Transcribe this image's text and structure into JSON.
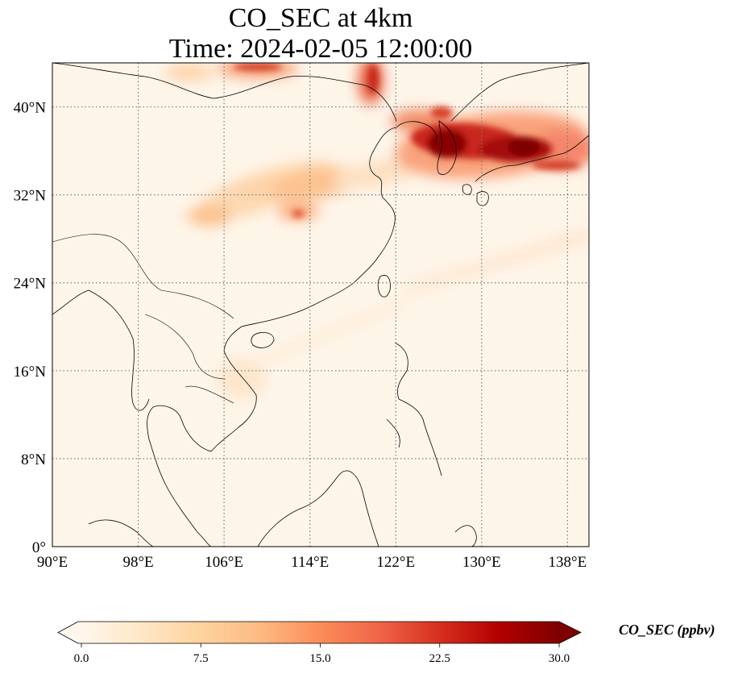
{
  "figure": {
    "title_line1": "CO_SEC at 4km",
    "title_line2": "Time: 2024-02-05 12:00:00"
  },
  "map": {
    "extent": {
      "lon": [
        90,
        140
      ],
      "lat": [
        0,
        44
      ]
    },
    "x_ticks": [
      {
        "value": 90,
        "label": "90°E"
      },
      {
        "value": 98,
        "label": "98°E"
      },
      {
        "value": 106,
        "label": "106°E"
      },
      {
        "value": 114,
        "label": "114°E"
      },
      {
        "value": 122,
        "label": "122°E"
      },
      {
        "value": 130,
        "label": "130°E"
      },
      {
        "value": 138,
        "label": "138°E"
      }
    ],
    "y_ticks": [
      {
        "value": 0,
        "label": "0°"
      },
      {
        "value": 8,
        "label": "8°N"
      },
      {
        "value": 16,
        "label": "16°N"
      },
      {
        "value": 24,
        "label": "24°N"
      },
      {
        "value": 32,
        "label": "32°N"
      },
      {
        "value": 40,
        "label": "40°N"
      }
    ],
    "gridlines": true,
    "field": "CO_SEC concentration (ppbv), highest over northern Yellow Sea / Korea / Sea of Japan"
  },
  "colorbar": {
    "label": "CO_SEC (ppbv)",
    "min": 0.0,
    "max": 30.0,
    "ticks": [
      {
        "value": 0.0,
        "label": "0.0"
      },
      {
        "value": 7.5,
        "label": "7.5"
      },
      {
        "value": 15.0,
        "label": "15.0"
      },
      {
        "value": 22.5,
        "label": "22.5"
      },
      {
        "value": 30.0,
        "label": "30.0"
      }
    ],
    "colormap": "OrRd",
    "colors": [
      "#fff7ec",
      "#fee8c8",
      "#fdd49e",
      "#fdbb84",
      "#fc8d59",
      "#ef6548",
      "#d7301f",
      "#b30000",
      "#7f0000"
    ],
    "extend": "both"
  },
  "chart_data": {
    "type": "heatmap",
    "title": "CO_SEC at 4km\nTime: 2024-02-05 12:00:00",
    "xlabel": "",
    "ylabel": "",
    "xlim": [
      90,
      140
    ],
    "ylim": [
      0,
      44
    ],
    "color_range": [
      0,
      30
    ],
    "hotspots": [
      {
        "lon": 126.5,
        "lat": 37.5,
        "value": 30
      },
      {
        "lon": 133,
        "lat": 37,
        "value": 28
      },
      {
        "lon": 123.5,
        "lat": 38.5,
        "value": 20
      },
      {
        "lon": 119,
        "lat": 43,
        "value": 20
      },
      {
        "lon": 105,
        "lat": 44,
        "value": 18
      },
      {
        "lon": 112,
        "lat": 31,
        "value": 12
      },
      {
        "lon": 113,
        "lat": 34,
        "value": 9
      },
      {
        "lon": 103,
        "lat": 31,
        "value": 8
      }
    ]
  }
}
